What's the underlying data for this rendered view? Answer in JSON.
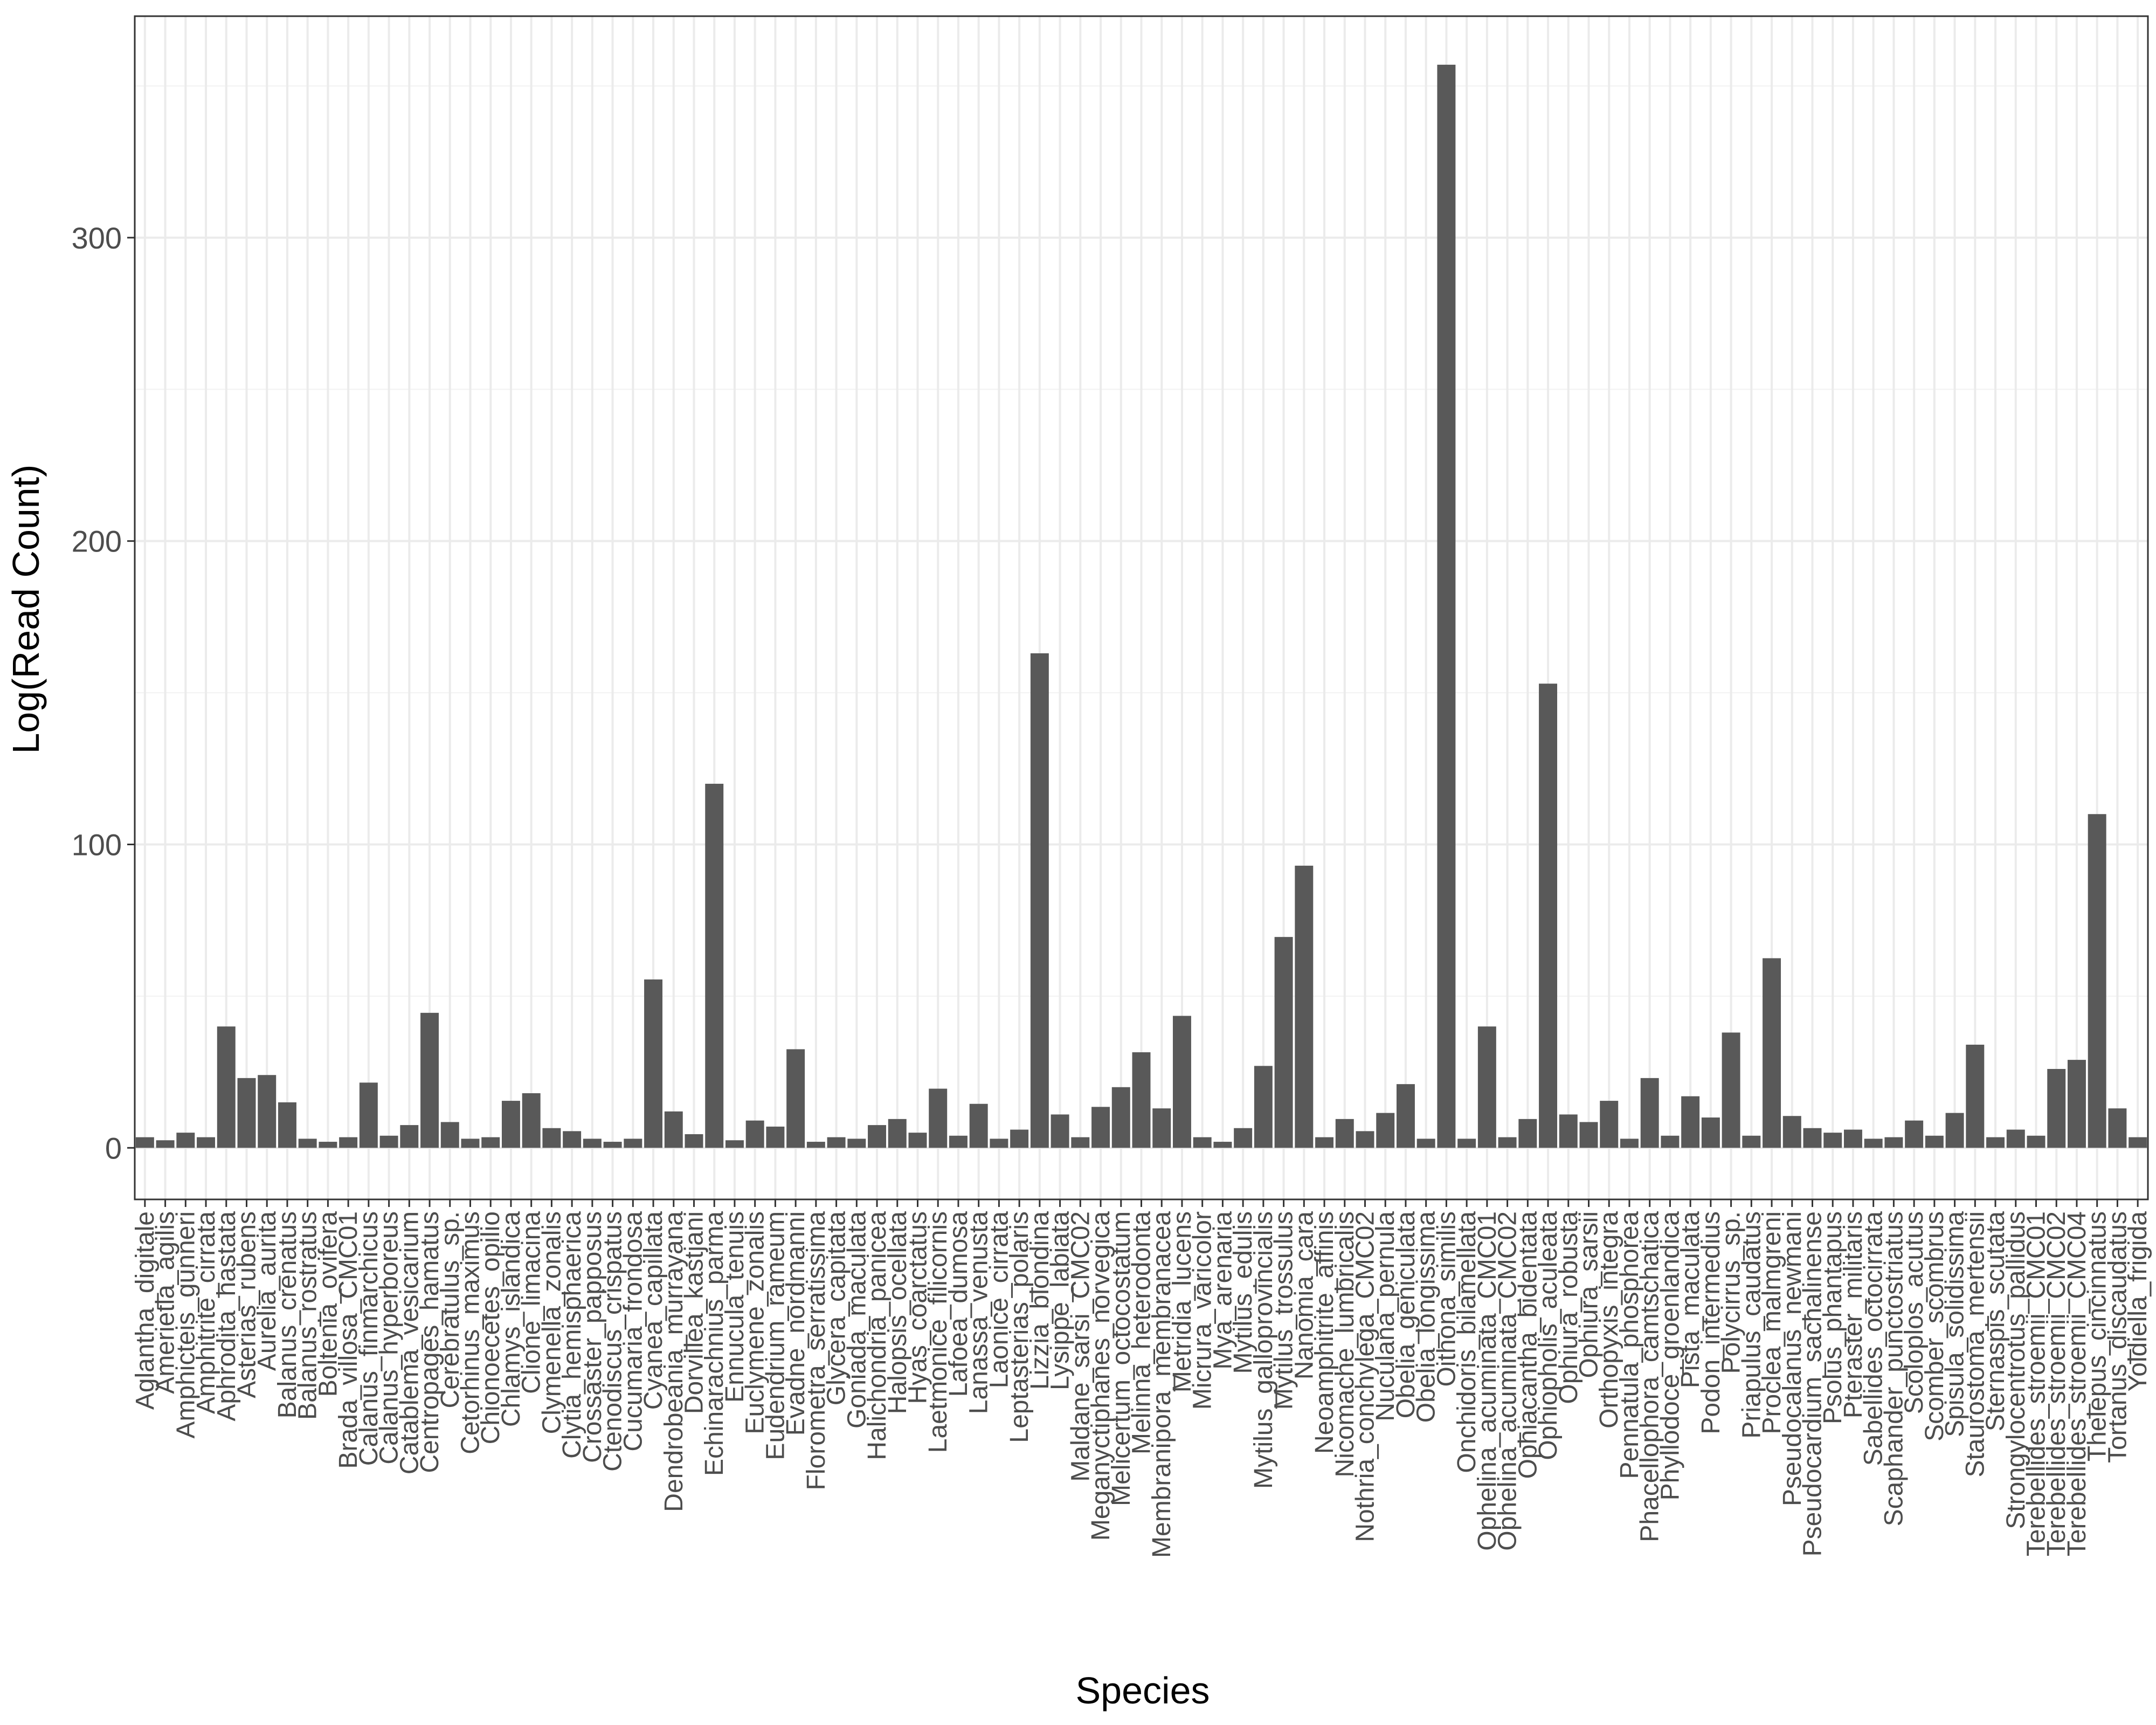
{
  "chart_data": {
    "type": "bar",
    "xlabel": "Species",
    "ylabel": "Log(Read Count)",
    "ylim": [
      -17,
      373
    ],
    "y_ticks": [
      0,
      100,
      200,
      300
    ],
    "grid": true,
    "theme": "bw",
    "bar_color": "#595959",
    "categories": [
      "Aglantha_digitale",
      "Amerietla_agilis",
      "Amphicteis_gunneri",
      "Amphitrite_cirrata",
      "Aphrodita_hastata",
      "Asterias_rubens",
      "Aurelia_aurita",
      "Balanus_crenatus",
      "Balanus_rostratus",
      "Boltenia_ovifera",
      "Brada_villosa_CMC01",
      "Calanus_finmarchicus",
      "Calanus_hyperboreus",
      "Catablema_vesicarium",
      "Centropages_hamatus",
      "Cerebratulus_sp.",
      "Cetorhinus_maximus",
      "Chionoecetes_opilio",
      "Chlamys_islandica",
      "Clione_limacina",
      "Clymenella_zonalis",
      "Clytia_hemisphaerica",
      "Crossaster_papposus",
      "Ctenodiscus_crispatus",
      "Cucumaria_frondosa",
      "Cyanea_capillata",
      "Dendrobeania_murrayana",
      "Dorvillea_kastjani",
      "Echinarachnius_parma",
      "Ennucula_tenuis",
      "Euclymene_zonalis",
      "Eudendrium_rameum",
      "Evadne_nordmanni",
      "Florometra_serratissima",
      "Glycera_capitata",
      "Goniada_maculata",
      "Halichondria_panicea",
      "Halopsis_ocellata",
      "Hyas_coarctatus",
      "Laetmonice_filicornis",
      "Lafoea_dumosa",
      "Lanassa_venusta",
      "Laonice_cirrata",
      "Leptasterias_polaris",
      "Lizzia_blondina",
      "Lysippe_labiata",
      "Maldane_sarsi_CMC02",
      "Meganyctiphanes_norvegica",
      "Melicertum_octocostatum",
      "Melinna_heterodonta",
      "Membranipora_membranacea",
      "Metridia_lucens",
      "Micrura_varicolor",
      "Mya_arenaria",
      "Mytilus_edulis",
      "Mytilus_galloprovincialis",
      "Mytilus_trossulus",
      "Nanomia_cara",
      "Neoamphitrite_affinis",
      "Nicomache_lumbricalis",
      "Nothria_conchylega_CMC02",
      "Nuculana_pernula",
      "Obelia_geniculata",
      "Obelia_longissima",
      "Oithona_similis",
      "Onchidoris_bilamellata",
      "Ophelina_acuminata_CMC01",
      "Ophelina_acuminata_CMC02",
      "Ophiacantha_bidentata",
      "Ophiopholis_aculeata",
      "Ophiura_robusta",
      "Ophiura_sarsii",
      "Orthopyxis_integra",
      "Pennatula_phosphorea",
      "Phacellophora_camtschatica",
      "Phyllodoce_groenlandica",
      "Pista_maculata",
      "Podon_intermedius",
      "Polycirrus_sp.",
      "Priapulus_caudatus",
      "Proclea_malmgreni",
      "Pseudocalanus_newmani",
      "Pseudocardium_sachalinense",
      "Psolus_phantapus",
      "Pteraster_militaris",
      "Sabellides_octocirrata",
      "Scaphander_punctostriatus",
      "Scoloplos_acutus",
      "Scomber_scombrus",
      "Spisula_solidissima",
      "Staurostoma_mertensii",
      "Sternaspis_scutata",
      "Strongylocentrotus_pallidus",
      "Terebellides_stroemii_CMC01",
      "Terebellides_stroemii_CMC02",
      "Terebellides_stroemii_CMC04",
      "Thelepus_cincinnatus",
      "Tortanus_discaudatus",
      "Yoldiella_frigida"
    ],
    "values": [
      3.5,
      2.5,
      5,
      3.5,
      40,
      23,
      24,
      15,
      3,
      2,
      3.5,
      21.5,
      4,
      7.5,
      44.5,
      8.5,
      3,
      3.5,
      15.5,
      18,
      6.5,
      5.5,
      3,
      2,
      3,
      55.5,
      12,
      4.5,
      120,
      2.5,
      9,
      7,
      32.5,
      2,
      3.5,
      3,
      7.5,
      9.5,
      5,
      19.5,
      4,
      14.5,
      3,
      6,
      163,
      11,
      3.5,
      13.5,
      20,
      31.5,
      13,
      43.5,
      3.5,
      2,
      6.5,
      27,
      69.5,
      93,
      3.5,
      9.5,
      5.5,
      11.5,
      21,
      3,
      357,
      3,
      40,
      3.5,
      9.5,
      153,
      11,
      8.5,
      15.5,
      3,
      23,
      4,
      17,
      10,
      38,
      4,
      62.5,
      10.5,
      6.5,
      5,
      6,
      3,
      3.5,
      9,
      4,
      11.5,
      34,
      3.5,
      6,
      4,
      26,
      29,
      110,
      13,
      3.5
    ]
  }
}
